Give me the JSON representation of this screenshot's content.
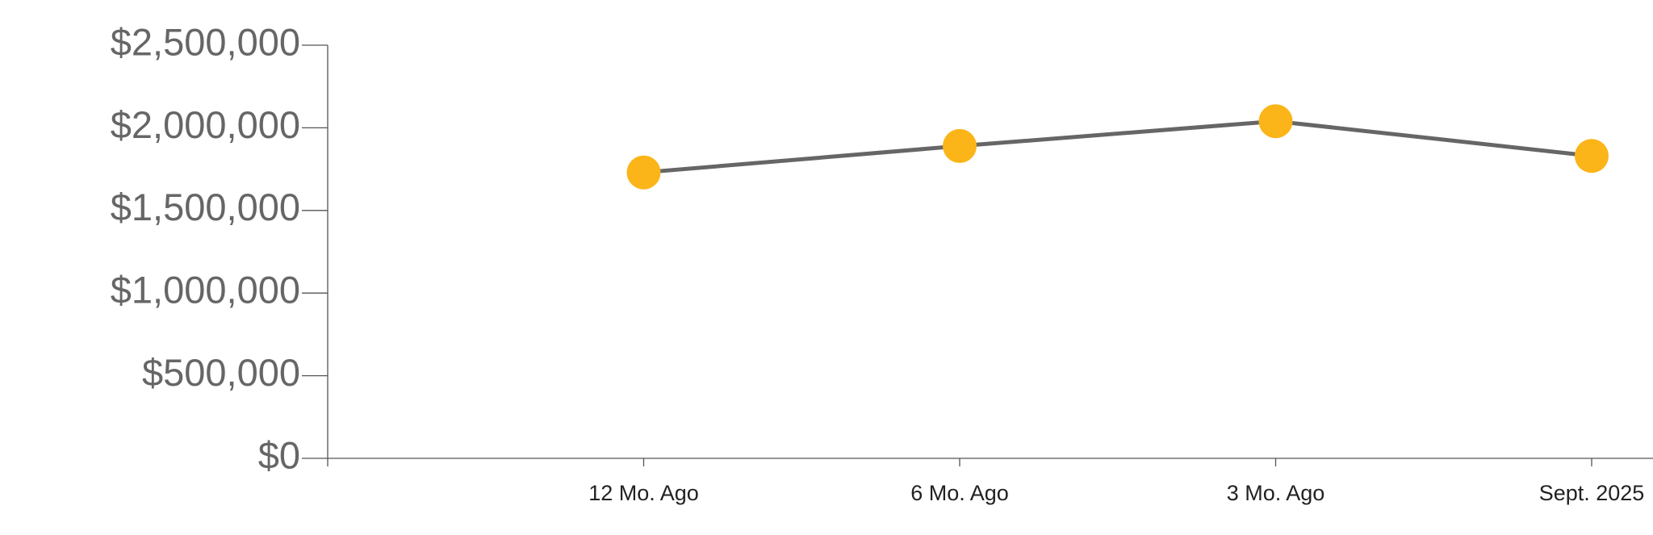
{
  "chart_data": {
    "type": "line",
    "categories": [
      "12 Mo. Ago",
      "6 Mo. Ago",
      "3 Mo. Ago",
      "Sept. 2025"
    ],
    "series": [
      {
        "color": "#fbb519",
        "line_color": "#666666",
        "values": [
          1730000,
          1890000,
          2040000,
          1830000
        ]
      }
    ],
    "ylim": [
      0,
      2500000
    ],
    "yticks": [
      {
        "value": 0,
        "label": "$0"
      },
      {
        "value": 500000,
        "label": "$500,000"
      },
      {
        "value": 1000000,
        "label": "$1,000,000"
      },
      {
        "value": 1500000,
        "label": "$1,500,000"
      },
      {
        "value": 2000000,
        "label": "$2,000,000"
      },
      {
        "value": 2500000,
        "label": "$2,500,000"
      }
    ]
  }
}
